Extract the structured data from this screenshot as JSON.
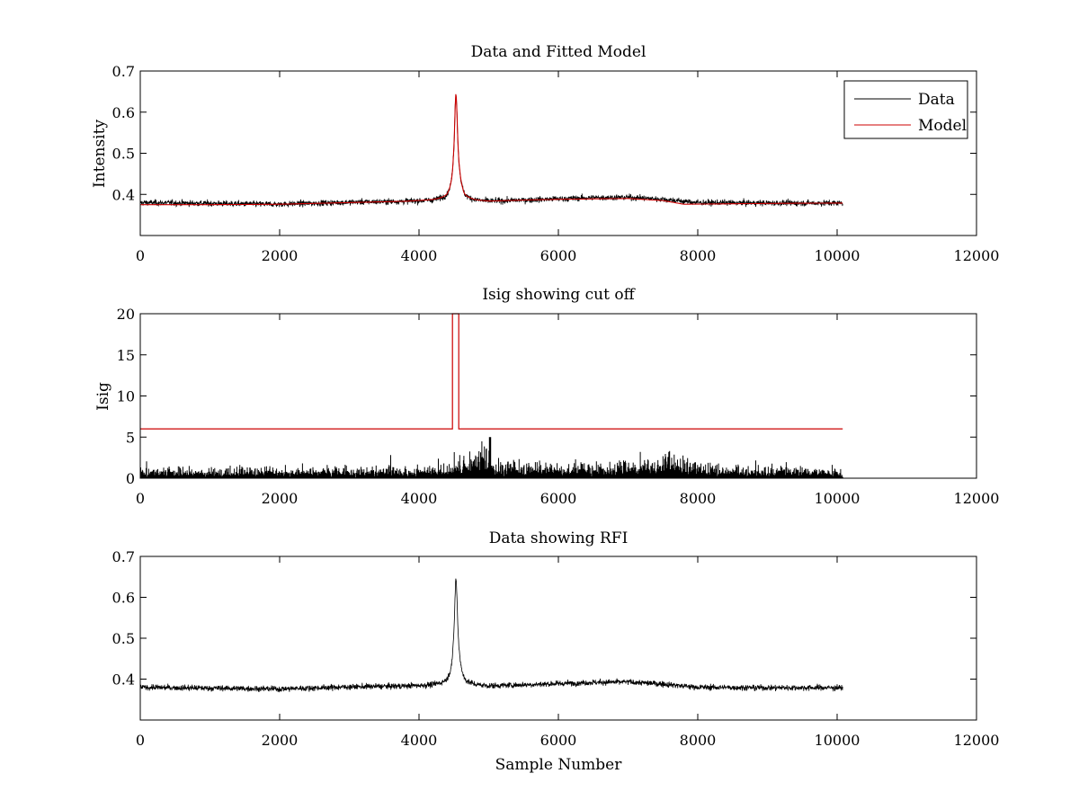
{
  "chart_data": [
    {
      "type": "line",
      "title": "Data and Fitted Model",
      "xlabel": "",
      "ylabel": "Intensity",
      "xlim": [
        0,
        12000
      ],
      "ylim": [
        0.3,
        0.7
      ],
      "xticks": [
        "0",
        "2000",
        "4000",
        "6000",
        "8000",
        "10000",
        "12000"
      ],
      "yticks": [
        "0.4",
        "0.5",
        "0.6",
        "0.7"
      ],
      "ytick_values": [
        0.4,
        0.5,
        0.6,
        0.7
      ],
      "grid": false,
      "legend_position": "top-right",
      "colors": {
        "data": "#000000",
        "model": "#cc0000"
      },
      "series": [
        {
          "name": "Data",
          "noise": 0.006,
          "peak_height": 0.24,
          "x": [
            0,
            1000,
            2000,
            3000,
            3800,
            4200,
            4400,
            4480,
            4530,
            4580,
            4650,
            4800,
            5000,
            5500,
            6000,
            6500,
            7000,
            7500,
            8000,
            9000,
            10080
          ],
          "y": [
            0.38,
            0.378,
            0.376,
            0.381,
            0.383,
            0.385,
            0.39,
            0.4,
            0.616,
            0.41,
            0.39,
            0.385,
            0.383,
            0.386,
            0.389,
            0.392,
            0.393,
            0.388,
            0.38,
            0.379,
            0.379
          ]
        },
        {
          "name": "Model",
          "noise": 0,
          "peak_height": 0.24,
          "x": [
            0,
            1000,
            2000,
            3000,
            3800,
            4200,
            4400,
            4480,
            4530,
            4580,
            4650,
            4800,
            5000,
            5500,
            6000,
            6500,
            7000,
            7500,
            7800,
            9000,
            10080
          ],
          "y": [
            0.375,
            0.375,
            0.376,
            0.38,
            0.383,
            0.386,
            0.39,
            0.4,
            0.616,
            0.41,
            0.39,
            0.385,
            0.383,
            0.386,
            0.388,
            0.389,
            0.39,
            0.385,
            0.376,
            0.378,
            0.379
          ]
        }
      ]
    },
    {
      "type": "line",
      "title": "Isig showing cut off",
      "xlabel": "",
      "ylabel": "Isig",
      "xlim": [
        0,
        12000
      ],
      "ylim": [
        0,
        20
      ],
      "xticks": [
        "0",
        "2000",
        "4000",
        "6000",
        "8000",
        "10000",
        "12000"
      ],
      "yticks": [
        "0",
        "5",
        "10",
        "15",
        "20"
      ],
      "ytick_values": [
        0,
        5,
        10,
        15,
        20
      ],
      "grid": false,
      "colors": {
        "isig": "#000000",
        "cutoff": "#cc0000"
      },
      "series": [
        {
          "name": "",
          "style": "spikes",
          "x": [
            0,
            2000,
            4000,
            4500,
            5000,
            5050,
            6000,
            7000,
            7600,
            8000,
            9500,
            10080
          ],
          "y": [
            1.2,
            1.3,
            1.4,
            1.5,
            5.2,
            2.4,
            1.6,
            2.0,
            3.5,
            1.8,
            1.4,
            1.2
          ]
        },
        {
          "name": "",
          "style": "cutoff",
          "x": [
            0,
            4480,
            4480,
            4570,
            4570,
            10080
          ],
          "y": [
            6,
            6,
            20,
            20,
            6,
            6
          ]
        }
      ]
    },
    {
      "type": "line",
      "title": "Data showing RFI",
      "xlabel": "Sample Number",
      "ylabel": "",
      "xlim": [
        0,
        12000
      ],
      "ylim": [
        0.3,
        0.7
      ],
      "xticks": [
        "0",
        "2000",
        "4000",
        "6000",
        "8000",
        "10000",
        "12000"
      ],
      "yticks": [
        "0.4",
        "0.5",
        "0.6",
        "0.7"
      ],
      "ytick_values": [
        0.4,
        0.5,
        0.6,
        0.7
      ],
      "grid": false,
      "colors": {
        "data": "#000000"
      },
      "series": [
        {
          "name": "",
          "noise": 0.006,
          "peak_height": 0.24,
          "x": [
            0,
            1000,
            2000,
            3000,
            3800,
            4200,
            4400,
            4480,
            4530,
            4580,
            4650,
            4800,
            5000,
            5500,
            6000,
            6500,
            7000,
            7500,
            8000,
            9000,
            10080
          ],
          "y": [
            0.38,
            0.378,
            0.376,
            0.381,
            0.383,
            0.385,
            0.39,
            0.4,
            0.616,
            0.41,
            0.39,
            0.385,
            0.383,
            0.386,
            0.389,
            0.392,
            0.393,
            0.388,
            0.38,
            0.379,
            0.379
          ]
        }
      ]
    }
  ]
}
